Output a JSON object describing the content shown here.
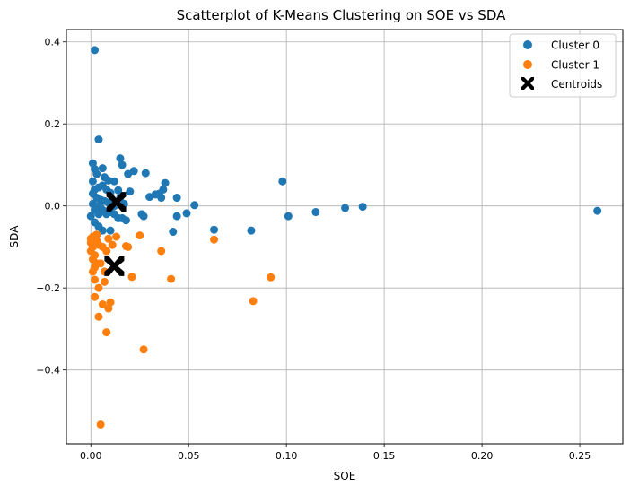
{
  "chart_data": {
    "type": "scatter",
    "title": "Scatterplot of K-Means Clustering on SOE vs SDA",
    "xlabel": "SOE",
    "ylabel": "SDA",
    "xlim": [
      -0.0125,
      0.272
    ],
    "ylim": [
      -0.58,
      0.43
    ],
    "xticks": [
      0.0,
      0.05,
      0.1,
      0.15,
      0.2,
      0.25
    ],
    "xtick_labels": [
      "0.00",
      "0.05",
      "0.10",
      "0.15",
      "0.20",
      "0.25"
    ],
    "yticks": [
      -0.4,
      -0.2,
      0.0,
      0.2,
      0.4
    ],
    "ytick_labels": [
      "−0.4",
      "−0.2",
      "0.0",
      "0.2",
      "0.4"
    ],
    "grid": true,
    "legend_position": "top-right",
    "colors": {
      "cluster0": "#1f77b4",
      "cluster1": "#ff7f0e",
      "centroids": "#000000"
    },
    "series": [
      {
        "name": "Cluster 0",
        "marker": "circle",
        "color": "#1f77b4",
        "points": [
          [
            0.002,
            0.38
          ],
          [
            0.004,
            0.162
          ],
          [
            0.001,
            0.104
          ],
          [
            0.002,
            0.09
          ],
          [
            0.006,
            0.092
          ],
          [
            0.003,
            0.078
          ],
          [
            0.007,
            0.07
          ],
          [
            0.001,
            0.06
          ],
          [
            0.009,
            0.062
          ],
          [
            0.012,
            0.06
          ],
          [
            0.015,
            0.116
          ],
          [
            0.016,
            0.1
          ],
          [
            0.019,
            0.078
          ],
          [
            0.022,
            0.085
          ],
          [
            0.028,
            0.08
          ],
          [
            0.038,
            0.056
          ],
          [
            0.037,
            0.04
          ],
          [
            0.035,
            0.03
          ],
          [
            0.033,
            0.028
          ],
          [
            0.03,
            0.022
          ],
          [
            0.036,
            0.02
          ],
          [
            0.044,
            0.02
          ],
          [
            0.02,
            0.035
          ],
          [
            0.014,
            0.038
          ],
          [
            0.01,
            0.032
          ],
          [
            0.008,
            0.04
          ],
          [
            0.006,
            0.05
          ],
          [
            0.004,
            0.045
          ],
          [
            0.002,
            0.04
          ],
          [
            0.001,
            0.03
          ],
          [
            0.003,
            0.02
          ],
          [
            0.005,
            0.015
          ],
          [
            0.007,
            0.012
          ],
          [
            0.009,
            0.008
          ],
          [
            0.001,
            0.005
          ],
          [
            0.003,
            0.0
          ],
          [
            0.005,
            -0.005
          ],
          [
            0.006,
            -0.01
          ],
          [
            0.002,
            -0.01
          ],
          [
            0.004,
            -0.02
          ],
          [
            0.0,
            -0.025
          ],
          [
            0.008,
            -0.02
          ],
          [
            0.01,
            -0.015
          ],
          [
            0.012,
            -0.02
          ],
          [
            0.014,
            -0.03
          ],
          [
            0.016,
            -0.03
          ],
          [
            0.018,
            -0.035
          ],
          [
            0.026,
            -0.02
          ],
          [
            0.027,
            -0.025
          ],
          [
            0.044,
            -0.025
          ],
          [
            0.049,
            -0.018
          ],
          [
            0.053,
            0.002
          ],
          [
            0.002,
            -0.04
          ],
          [
            0.004,
            -0.05
          ],
          [
            0.006,
            -0.06
          ],
          [
            0.003,
            -0.07
          ],
          [
            0.01,
            -0.06
          ],
          [
            0.042,
            -0.063
          ],
          [
            0.063,
            -0.058
          ],
          [
            0.082,
            -0.06
          ],
          [
            0.098,
            0.06
          ],
          [
            0.101,
            -0.025
          ],
          [
            0.115,
            -0.015
          ],
          [
            0.13,
            -0.005
          ],
          [
            0.139,
            -0.002
          ],
          [
            0.259,
            -0.012
          ],
          [
            0.012,
            0.0
          ],
          [
            0.013,
            0.01
          ],
          [
            0.015,
            0.02
          ],
          [
            0.017,
            0.005
          ]
        ]
      },
      {
        "name": "Cluster 1",
        "marker": "circle",
        "color": "#ff7f0e",
        "points": [
          [
            0.005,
            -0.533
          ],
          [
            0.027,
            -0.35
          ],
          [
            0.008,
            -0.308
          ],
          [
            0.004,
            -0.27
          ],
          [
            0.009,
            -0.25
          ],
          [
            0.006,
            -0.24
          ],
          [
            0.01,
            -0.235
          ],
          [
            0.002,
            -0.222
          ],
          [
            0.004,
            -0.2
          ],
          [
            0.007,
            -0.185
          ],
          [
            0.001,
            -0.16
          ],
          [
            0.002,
            -0.15
          ],
          [
            0.003,
            -0.14
          ],
          [
            0.001,
            -0.13
          ],
          [
            0.002,
            -0.12
          ],
          [
            0.0,
            -0.11
          ],
          [
            0.001,
            -0.1
          ],
          [
            0.0,
            -0.09
          ],
          [
            0.0,
            -0.08
          ],
          [
            0.001,
            -0.075
          ],
          [
            0.003,
            -0.085
          ],
          [
            0.004,
            -0.095
          ],
          [
            0.006,
            -0.1
          ],
          [
            0.008,
            -0.11
          ],
          [
            0.011,
            -0.095
          ],
          [
            0.009,
            -0.08
          ],
          [
            0.013,
            -0.075
          ],
          [
            0.018,
            -0.098
          ],
          [
            0.019,
            -0.1
          ],
          [
            0.021,
            -0.173
          ],
          [
            0.025,
            -0.072
          ],
          [
            0.036,
            -0.11
          ],
          [
            0.041,
            -0.178
          ],
          [
            0.063,
            -0.082
          ],
          [
            0.083,
            -0.232
          ],
          [
            0.092,
            -0.174
          ],
          [
            0.005,
            -0.14
          ],
          [
            0.007,
            -0.16
          ],
          [
            0.002,
            -0.18
          ],
          [
            0.003,
            -0.07
          ]
        ]
      },
      {
        "name": "Centroids",
        "marker": "X",
        "color": "#000000",
        "points": [
          [
            0.013,
            0.01
          ],
          [
            0.012,
            -0.147
          ]
        ]
      }
    ]
  }
}
